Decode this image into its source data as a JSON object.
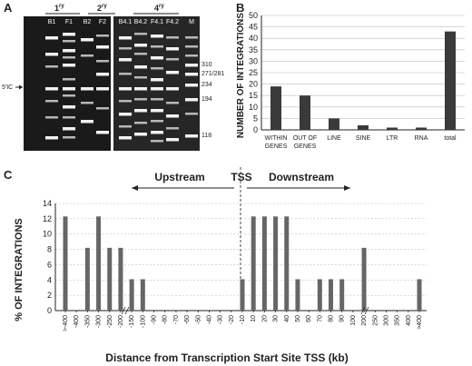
{
  "panels": {
    "a": "A",
    "b": "B",
    "c": "C"
  },
  "gel": {
    "groups": [
      "1ry",
      "2ry",
      "4ry"
    ],
    "group_base": [
      "1",
      "2",
      "4"
    ],
    "group_sup": [
      "ry",
      "ry",
      "ry"
    ],
    "lanes": [
      "B1",
      "F1",
      "B2",
      "F2",
      "B4.1",
      "B4.2",
      "F4.1",
      "F4.2",
      "M"
    ],
    "marker_sizes": [
      "310",
      "271/281",
      "234",
      "194",
      "118"
    ],
    "side_label": "5'IC"
  },
  "chart_data": [
    {
      "type": "bar",
      "title": "",
      "xlabel": "",
      "ylabel": "NUMBER OF INTEGRATIONS",
      "categories": [
        "WITHIN GENES",
        "OUT OF GENES",
        "LINE",
        "SINE",
        "LTR",
        "RNA",
        "total"
      ],
      "category_lines": [
        [
          "WITHIN",
          "GENES"
        ],
        [
          "OUT OF",
          "GENES"
        ],
        [
          "LINE"
        ],
        [
          "SINE"
        ],
        [
          "LTR"
        ],
        [
          "RNA"
        ],
        [
          "total"
        ]
      ],
      "values": [
        19,
        15,
        5,
        2,
        1,
        1,
        43
      ],
      "ylim": [
        0,
        50
      ],
      "yticks": [
        0,
        5,
        10,
        15,
        20,
        25,
        30,
        35,
        40,
        45,
        50
      ],
      "grid": true
    },
    {
      "type": "bar",
      "title": "",
      "xlabel": "Distance from Transcription Start Site TSS (kb)",
      "ylabel": "% OF INTEGRATIONS",
      "categories": [
        ">-400",
        "-400",
        "-350",
        "-300",
        "-250",
        "-200",
        "-150",
        "-100",
        "-90",
        "-80",
        "-70",
        "-60",
        "-50",
        "-40",
        "-30",
        "-20",
        "-10",
        "10",
        "20",
        "30",
        "40",
        "50",
        "60",
        "70",
        "80",
        "90",
        "100",
        "200",
        "250",
        "300",
        "350",
        "400",
        ">400"
      ],
      "values": [
        12.3,
        0,
        8.2,
        12.3,
        8.2,
        8.2,
        4.1,
        4.1,
        0,
        0,
        0,
        0,
        0,
        0,
        0,
        0,
        4.1,
        12.3,
        12.3,
        12.3,
        12.3,
        4.1,
        0,
        4.1,
        4.1,
        4.1,
        0,
        8.2,
        0,
        0,
        0,
        0,
        4.1
      ],
      "ylim": [
        0,
        14
      ],
      "yticks": [
        0,
        2,
        4,
        6,
        8,
        10,
        12,
        14
      ],
      "grid": true,
      "annotations": {
        "tss": "TSS",
        "upstream": "Upstream",
        "downstream": "Downstream"
      }
    }
  ]
}
